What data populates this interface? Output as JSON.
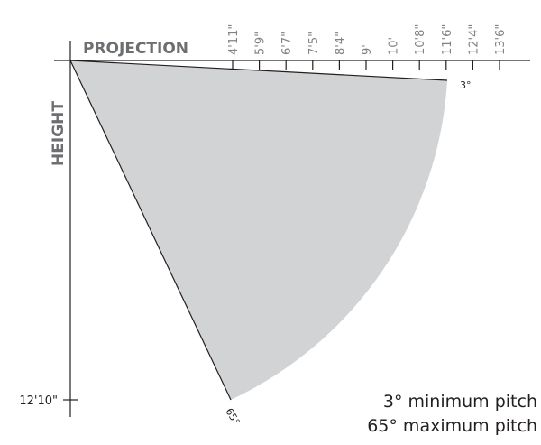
{
  "diagram": {
    "projection_label": "PROJECTION",
    "height_label": "HEIGHT",
    "projection_ticks": [
      "4'11\"",
      "5'9\"",
      "6'7\"",
      "7'5\"",
      "8'4\"",
      "9'",
      "10'",
      "10'8\"",
      "11'6\"",
      "12'4\"",
      "13'6\""
    ],
    "height_tick": "12'10\"",
    "angles": {
      "min_label": "3°",
      "max_label": "65°"
    },
    "colors": {
      "sector_fill": "#d1d3d4",
      "axis": "#231f20",
      "tick_label": "#808285",
      "axis_title": "#6d6e71"
    }
  },
  "captions": {
    "min_pitch": "3° minimum pitch",
    "max_pitch": "65° maximum pitch"
  }
}
